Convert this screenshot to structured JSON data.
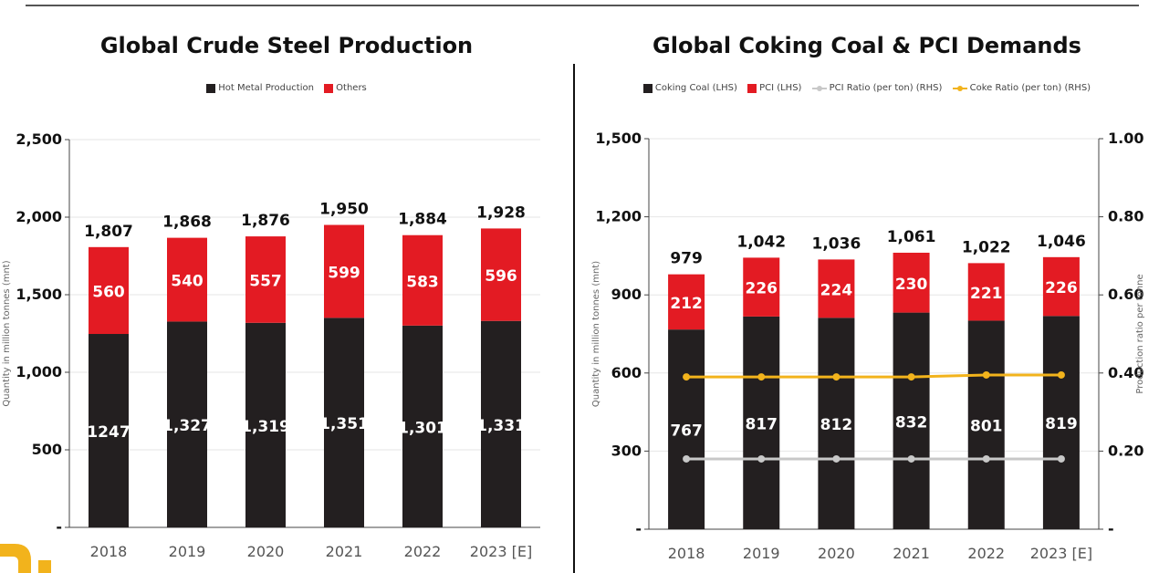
{
  "chart_data": [
    {
      "type": "bar",
      "stacked": true,
      "title": "Global Crude Steel Production",
      "ylabel": "Quantity in million tonnes (mnt)",
      "ylim": [
        0,
        2500
      ],
      "yticks": [
        "-",
        "500",
        "1,000",
        "1,500",
        "2,000",
        "2,500"
      ],
      "ytick_values": [
        0,
        500,
        1000,
        1500,
        2000,
        2500
      ],
      "grid": true,
      "legend_position": "top-center",
      "categories": [
        "2018",
        "2019",
        "2020",
        "2021",
        "2022",
        "2023 [E]"
      ],
      "series": [
        {
          "name": "Hot Metal Production",
          "color": "#231f20",
          "values": [
            1247,
            1327,
            1319,
            1351,
            1301,
            1331
          ],
          "labels": [
            "1247",
            "1,327",
            "1,319",
            "1,351",
            "1,301",
            "1,331"
          ]
        },
        {
          "name": "Others",
          "color": "#e31b23",
          "values": [
            560,
            540,
            557,
            599,
            583,
            596
          ],
          "labels": [
            "560",
            "540",
            "557",
            "599",
            "583",
            "596"
          ]
        }
      ],
      "totals": [
        1807,
        1868,
        1876,
        1950,
        1884,
        1928
      ],
      "total_labels": [
        "1,807",
        "1,868",
        "1,876",
        "1,950",
        "1,884",
        "1,928"
      ]
    },
    {
      "type": "bar",
      "stacked": true,
      "title": "Global Coking Coal & PCI Demands",
      "ylabel": "Quantity in million tonnes (mnt)",
      "y2label": "Production ratio per tonne",
      "ylim": [
        0,
        1500
      ],
      "y2lim": [
        0,
        1.0
      ],
      "yticks": [
        "-",
        "300",
        "600",
        "900",
        "1,200",
        "1,500"
      ],
      "ytick_values": [
        0,
        300,
        600,
        900,
        1200,
        1500
      ],
      "y2ticks": [
        "-",
        "0.20",
        "0.40",
        "0.60",
        "0.80",
        "1.00"
      ],
      "y2tick_values": [
        0,
        0.2,
        0.4,
        0.6,
        0.8,
        1.0
      ],
      "grid": true,
      "legend_position": "top-center",
      "categories": [
        "2018",
        "2019",
        "2020",
        "2021",
        "2022",
        "2023 [E]"
      ],
      "series": [
        {
          "name": "Coking Coal (LHS)",
          "color": "#231f20",
          "values": [
            767,
            817,
            812,
            832,
            801,
            819
          ],
          "labels": [
            "767",
            "817",
            "812",
            "832",
            "801",
            "819"
          ]
        },
        {
          "name": "PCI (LHS)",
          "color": "#e31b23",
          "values": [
            212,
            226,
            224,
            230,
            221,
            226
          ],
          "labels": [
            "212",
            "226",
            "224",
            "230",
            "221",
            "226"
          ]
        }
      ],
      "totals": [
        979,
        1042,
        1036,
        1061,
        1022,
        1046
      ],
      "total_labels": [
        "979",
        "1,042",
        "1,036",
        "1,061",
        "1,022",
        "1,046"
      ],
      "line_series": [
        {
          "name": "PCI Ratio (per ton) (RHS)",
          "color": "#c8c8c8",
          "axis": "right",
          "values": [
            0.18,
            0.18,
            0.18,
            0.18,
            0.18,
            0.18
          ]
        },
        {
          "name": "Coke Ratio (per ton) (RHS)",
          "color": "#f2b31c",
          "axis": "right",
          "values": [
            0.39,
            0.39,
            0.39,
            0.39,
            0.395,
            0.395
          ]
        }
      ]
    }
  ],
  "colors": {
    "dark": "#231f20",
    "red": "#e31b23",
    "gold": "#f2b31c",
    "gray": "#c8c8c8"
  }
}
